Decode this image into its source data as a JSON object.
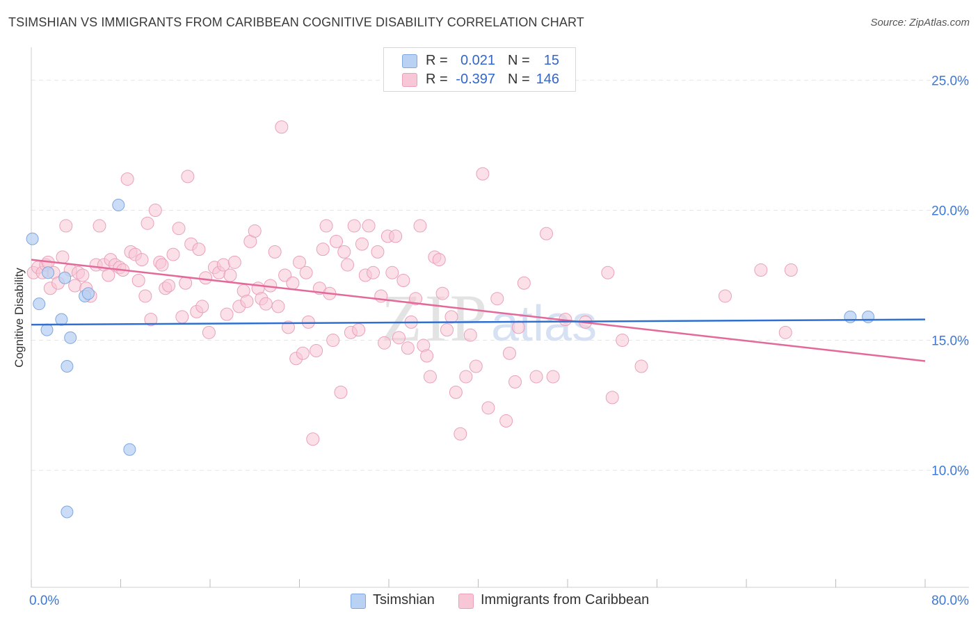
{
  "title": "TSIMSHIAN VS IMMIGRANTS FROM CARIBBEAN COGNITIVE DISABILITY CORRELATION CHART",
  "source": "Source: ZipAtlas.com",
  "colors": {
    "blue_fill": "#b9d1f3",
    "blue_stroke": "#7fa6de",
    "blue_line": "#2f6fd0",
    "pink_fill": "#f7c7d6",
    "pink_stroke": "#eaa0ba",
    "pink_line": "#e4689a",
    "axis_text": "#3b78d8",
    "grid": "#e6e6e6"
  },
  "legend": {
    "rows": [
      {
        "r_label": "R =",
        "r_value": "0.021",
        "n_label": "N =",
        "n_value": "15"
      },
      {
        "r_label": "R =",
        "r_value": "-0.397",
        "n_label": "N =",
        "n_value": "146"
      }
    ]
  },
  "bottom_legend": {
    "items": [
      {
        "label": "Tsimshian"
      },
      {
        "label": "Immigrants from Caribbean"
      }
    ]
  },
  "watermark": {
    "zip": "ZIP",
    "atlas": "atlas"
  },
  "chart_data": {
    "type": "scatter",
    "ylabel": "Cognitive Disability",
    "xlabel": "",
    "x_tick_labels": {
      "min": "0.0%",
      "max": "80.0%"
    },
    "y_tick_labels": [
      "25.0%",
      "20.0%",
      "15.0%",
      "10.0%"
    ],
    "xlim": [
      0,
      80
    ],
    "ylim": [
      5.5,
      26.0
    ],
    "y_gridlines": [
      25,
      20,
      15,
      10
    ],
    "series": [
      {
        "name": "Tsimshian",
        "r": 0.021,
        "n": 15,
        "trend": {
          "x0": 0,
          "y0": 15.6,
          "x1": 80,
          "y1": 15.8
        },
        "points": [
          [
            0.1,
            18.9
          ],
          [
            0.7,
            16.4
          ],
          [
            1.4,
            15.4
          ],
          [
            1.5,
            17.6
          ],
          [
            2.7,
            15.8
          ],
          [
            3.0,
            17.4
          ],
          [
            3.2,
            14.0
          ],
          [
            3.5,
            15.1
          ],
          [
            4.8,
            16.7
          ],
          [
            5.1,
            16.8
          ],
          [
            7.8,
            20.2
          ],
          [
            8.8,
            10.8
          ],
          [
            3.2,
            8.4
          ],
          [
            73.3,
            15.9
          ],
          [
            74.9,
            15.9
          ]
        ]
      },
      {
        "name": "Immigrants from Caribbean",
        "r": -0.397,
        "n": 146,
        "trend": {
          "x0": 0,
          "y0": 18.1,
          "x1": 80,
          "y1": 14.2
        },
        "points": [
          [
            0.2,
            17.6
          ],
          [
            0.6,
            17.8
          ],
          [
            1.0,
            17.6
          ],
          [
            1.3,
            17.9
          ],
          [
            1.5,
            18.0
          ],
          [
            1.7,
            17.0
          ],
          [
            2.0,
            17.6
          ],
          [
            2.4,
            17.2
          ],
          [
            2.8,
            18.2
          ],
          [
            3.1,
            19.4
          ],
          [
            3.5,
            17.7
          ],
          [
            3.9,
            17.1
          ],
          [
            4.2,
            17.6
          ],
          [
            4.6,
            17.5
          ],
          [
            4.9,
            17.0
          ],
          [
            5.3,
            16.7
          ],
          [
            5.8,
            17.9
          ],
          [
            6.1,
            19.4
          ],
          [
            6.5,
            17.9
          ],
          [
            6.9,
            17.5
          ],
          [
            7.1,
            18.1
          ],
          [
            7.5,
            17.9
          ],
          [
            7.9,
            17.8
          ],
          [
            8.2,
            17.7
          ],
          [
            8.6,
            21.2
          ],
          [
            8.9,
            18.4
          ],
          [
            9.3,
            18.3
          ],
          [
            9.6,
            17.3
          ],
          [
            9.9,
            18.1
          ],
          [
            10.2,
            16.7
          ],
          [
            10.4,
            19.5
          ],
          [
            10.7,
            15.8
          ],
          [
            11.1,
            20.0
          ],
          [
            11.5,
            18.0
          ],
          [
            11.7,
            17.9
          ],
          [
            12.0,
            17.0
          ],
          [
            12.3,
            17.1
          ],
          [
            12.7,
            18.3
          ],
          [
            13.2,
            19.3
          ],
          [
            13.5,
            15.9
          ],
          [
            13.8,
            17.2
          ],
          [
            14.0,
            21.3
          ],
          [
            14.3,
            18.7
          ],
          [
            14.8,
            16.1
          ],
          [
            15.0,
            18.5
          ],
          [
            15.3,
            16.3
          ],
          [
            15.6,
            17.4
          ],
          [
            15.9,
            15.3
          ],
          [
            16.4,
            17.8
          ],
          [
            16.8,
            17.6
          ],
          [
            17.2,
            17.9
          ],
          [
            17.5,
            16.0
          ],
          [
            17.8,
            17.5
          ],
          [
            18.2,
            18.0
          ],
          [
            18.6,
            16.3
          ],
          [
            19.0,
            16.9
          ],
          [
            19.3,
            16.5
          ],
          [
            19.6,
            18.8
          ],
          [
            20.0,
            19.2
          ],
          [
            20.3,
            17.0
          ],
          [
            20.6,
            16.6
          ],
          [
            21.0,
            16.4
          ],
          [
            21.4,
            17.1
          ],
          [
            21.8,
            18.4
          ],
          [
            22.1,
            16.3
          ],
          [
            22.4,
            23.2
          ],
          [
            22.7,
            17.5
          ],
          [
            23.0,
            15.5
          ],
          [
            23.4,
            17.2
          ],
          [
            23.7,
            14.3
          ],
          [
            24.0,
            18.0
          ],
          [
            24.3,
            14.5
          ],
          [
            24.6,
            17.6
          ],
          [
            24.8,
            15.7
          ],
          [
            25.2,
            11.2
          ],
          [
            25.5,
            14.6
          ],
          [
            25.8,
            17.0
          ],
          [
            26.1,
            18.5
          ],
          [
            26.4,
            19.4
          ],
          [
            26.7,
            16.8
          ],
          [
            27.0,
            15.0
          ],
          [
            27.3,
            18.8
          ],
          [
            27.7,
            13.0
          ],
          [
            28.0,
            18.4
          ],
          [
            28.3,
            17.9
          ],
          [
            28.6,
            15.3
          ],
          [
            28.9,
            19.4
          ],
          [
            29.3,
            15.4
          ],
          [
            29.6,
            18.7
          ],
          [
            29.9,
            17.5
          ],
          [
            30.2,
            19.4
          ],
          [
            30.6,
            17.6
          ],
          [
            31.0,
            18.4
          ],
          [
            31.3,
            16.7
          ],
          [
            31.6,
            14.9
          ],
          [
            31.9,
            19.0
          ],
          [
            32.3,
            17.6
          ],
          [
            32.6,
            19.0
          ],
          [
            32.9,
            15.1
          ],
          [
            33.3,
            17.3
          ],
          [
            33.7,
            14.7
          ],
          [
            34.0,
            15.7
          ],
          [
            34.4,
            16.6
          ],
          [
            34.8,
            19.4
          ],
          [
            35.1,
            14.8
          ],
          [
            35.4,
            14.4
          ],
          [
            35.7,
            13.6
          ],
          [
            36.1,
            18.2
          ],
          [
            36.5,
            18.1
          ],
          [
            36.8,
            16.8
          ],
          [
            37.2,
            15.4
          ],
          [
            37.6,
            15.9
          ],
          [
            38.0,
            13.0
          ],
          [
            38.4,
            11.4
          ],
          [
            38.9,
            13.6
          ],
          [
            39.3,
            15.2
          ],
          [
            39.8,
            14.0
          ],
          [
            40.4,
            21.4
          ],
          [
            40.9,
            12.4
          ],
          [
            41.7,
            16.6
          ],
          [
            42.5,
            11.9
          ],
          [
            42.8,
            14.5
          ],
          [
            43.3,
            13.4
          ],
          [
            43.6,
            15.5
          ],
          [
            44.1,
            17.2
          ],
          [
            45.2,
            13.6
          ],
          [
            46.1,
            19.1
          ],
          [
            46.7,
            13.6
          ],
          [
            47.8,
            15.8
          ],
          [
            49.6,
            15.7
          ],
          [
            51.6,
            17.6
          ],
          [
            52.0,
            12.8
          ],
          [
            52.9,
            15.0
          ],
          [
            54.6,
            14.0
          ],
          [
            62.1,
            16.7
          ],
          [
            65.3,
            17.7
          ],
          [
            67.5,
            15.3
          ],
          [
            68.0,
            17.7
          ]
        ]
      }
    ]
  }
}
